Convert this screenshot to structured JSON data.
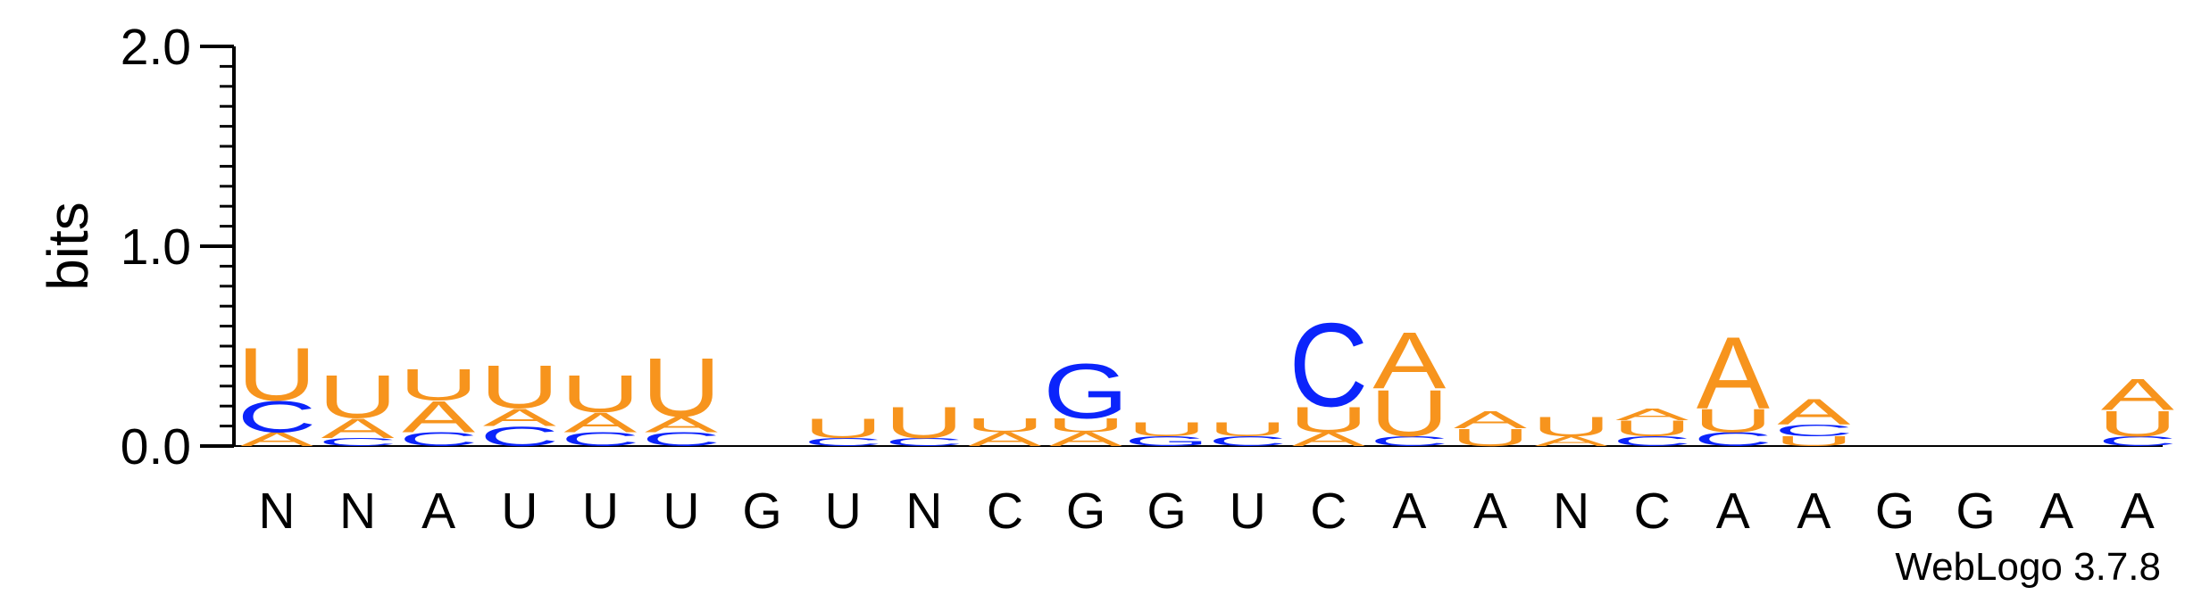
{
  "chart_data": {
    "type": "sequence-logo",
    "ylabel": "bits",
    "ylim": [
      0,
      2.0
    ],
    "yticks": [
      "0.0",
      "1.0",
      "2.0"
    ],
    "xticks": [
      "N",
      "N",
      "A",
      "U",
      "U",
      "U",
      "G",
      "U",
      "N",
      "C",
      "G",
      "G",
      "U",
      "C",
      "A",
      "A",
      "N",
      "C",
      "A",
      "A",
      "G",
      "G",
      "A",
      "A"
    ],
    "credit": "WebLogo 3.7.8",
    "colors": {
      "A": "#f7941d",
      "U": "#f7941d",
      "C": "#0b24fb",
      "G": "#0b24fb"
    },
    "positions": [
      [
        [
          "A",
          0.07
        ],
        [
          "C",
          0.16
        ],
        [
          "U",
          0.27
        ]
      ],
      [
        [
          "C",
          0.04
        ],
        [
          "A",
          0.1
        ],
        [
          "U",
          0.22
        ]
      ],
      [
        [
          "C",
          0.07
        ],
        [
          "A",
          0.16
        ],
        [
          "U",
          0.16
        ]
      ],
      [
        [
          "C",
          0.1
        ],
        [
          "A",
          0.09
        ],
        [
          "U",
          0.22
        ]
      ],
      [
        [
          "C",
          0.07
        ],
        [
          "A",
          0.1
        ],
        [
          "U",
          0.19
        ]
      ],
      [
        [
          "C",
          0.07
        ],
        [
          "A",
          0.08
        ],
        [
          "U",
          0.3
        ]
      ],
      [],
      [
        [
          "C",
          0.04
        ],
        [
          "U",
          0.1
        ]
      ],
      [
        [
          "C",
          0.04
        ],
        [
          "U",
          0.16
        ]
      ],
      [
        [
          "A",
          0.07
        ],
        [
          "U",
          0.07
        ]
      ],
      [
        [
          "A",
          0.07
        ],
        [
          "U",
          0.07
        ],
        [
          "G",
          0.28
        ]
      ],
      [
        [
          "G",
          0.05
        ],
        [
          "U",
          0.07
        ]
      ],
      [
        [
          "C",
          0.05
        ],
        [
          "U",
          0.07
        ]
      ],
      [
        [
          "A",
          0.07
        ],
        [
          "U",
          0.13
        ],
        [
          "C",
          0.43
        ]
      ],
      [
        [
          "C",
          0.05
        ],
        [
          "U",
          0.24
        ],
        [
          "A",
          0.29
        ]
      ],
      [
        [
          "U",
          0.09
        ],
        [
          "A",
          0.09
        ]
      ],
      [
        [
          "A",
          0.05
        ],
        [
          "U",
          0.1
        ]
      ],
      [
        [
          "C",
          0.05
        ],
        [
          "U",
          0.08
        ],
        [
          "A",
          0.06
        ]
      ],
      [
        [
          "C",
          0.07
        ],
        [
          "U",
          0.12
        ],
        [
          "A",
          0.37
        ]
      ],
      [
        [
          "U",
          0.05
        ],
        [
          "C",
          0.06
        ],
        [
          "A",
          0.13
        ]
      ],
      [],
      [],
      [],
      [
        [
          "C",
          0.05
        ],
        [
          "U",
          0.13
        ],
        [
          "A",
          0.16
        ]
      ]
    ]
  }
}
